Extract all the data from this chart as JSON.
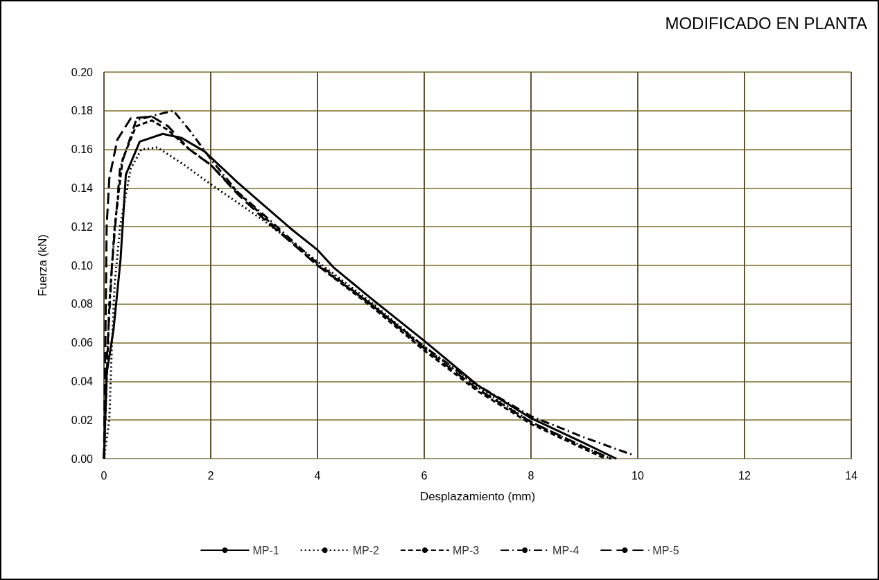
{
  "chart_data": {
    "type": "line",
    "title": "MODIFICADO EN PLANTA",
    "xlabel": "Desplazamiento (mm)",
    "ylabel": "Fuerza (kN)",
    "xlim": [
      0,
      14
    ],
    "xticks": [
      0,
      2,
      4,
      6,
      8,
      10,
      12,
      14
    ],
    "ylim": [
      0,
      0.2
    ],
    "yticks": [
      {
        "value": 0,
        "label": "0.00"
      },
      {
        "value": 0.02,
        "label": "0.02"
      },
      {
        "value": 0.04,
        "label": "0.04"
      },
      {
        "value": 0.06,
        "label": "0.06"
      },
      {
        "value": 0.08,
        "label": "0.08"
      },
      {
        "value": 0.1,
        "label": "0.10"
      },
      {
        "value": 0.12,
        "label": "0.12"
      },
      {
        "value": 0.14,
        "label": "0.14"
      },
      {
        "value": 0.16,
        "label": "0.16"
      },
      {
        "value": 0.18,
        "label": "0.18"
      },
      {
        "value": 0.2,
        "label": "0.20"
      }
    ],
    "grid": true,
    "legend": "bottom",
    "marker": "none",
    "series": [
      {
        "name": "MP-1",
        "color": "#000000",
        "line_style": "solid",
        "x": [
          0,
          0.05,
          0.18,
          0.31,
          0.41,
          0.67,
          1.1,
          1.45,
          1.88,
          2.5,
          3,
          3.5,
          4,
          4.3,
          5,
          6,
          7,
          8,
          9,
          9.6
        ],
        "values": [
          0,
          0.044,
          0.067,
          0.103,
          0.147,
          0.164,
          0.168,
          0.166,
          0.159,
          0.143,
          0.131,
          0.119,
          0.108,
          0.099,
          0.083,
          0.061,
          0.038,
          0.021,
          0.008,
          0
        ]
      },
      {
        "name": "MP-2",
        "color": "#000000",
        "line_style": "dotted",
        "x": [
          0,
          0.1,
          0.15,
          0.2,
          0.3,
          0.5,
          0.7,
          1,
          1.5,
          2,
          3,
          4,
          5,
          6,
          7,
          8,
          9,
          9.5
        ],
        "values": [
          0,
          0.02,
          0.06,
          0.09,
          0.12,
          0.15,
          0.16,
          0.161,
          0.152,
          0.142,
          0.123,
          0.102,
          0.081,
          0.058,
          0.037,
          0.019,
          0.006,
          0
        ]
      },
      {
        "name": "MP-3",
        "color": "#000000",
        "line_style": "dashed",
        "x": [
          0,
          0.05,
          0.1,
          0.2,
          0.35,
          0.6,
          0.9,
          1.2,
          1.6,
          2,
          2.5,
          3,
          4,
          5,
          6,
          7,
          8,
          9,
          9.4
        ],
        "values": [
          0,
          0.04,
          0.08,
          0.12,
          0.155,
          0.172,
          0.175,
          0.17,
          0.16,
          0.152,
          0.138,
          0.125,
          0.1,
          0.079,
          0.056,
          0.035,
          0.018,
          0.005,
          0
        ]
      },
      {
        "name": "MP-4",
        "color": "#000000",
        "line_style": "dashdot",
        "x": [
          0,
          0.05,
          0.15,
          0.3,
          0.6,
          1,
          1.3,
          1.6,
          2,
          2.5,
          3,
          4,
          5,
          6,
          7,
          8,
          9,
          9.9
        ],
        "values": [
          0,
          0.05,
          0.1,
          0.15,
          0.175,
          0.178,
          0.18,
          0.17,
          0.155,
          0.138,
          0.126,
          0.101,
          0.08,
          0.058,
          0.038,
          0.022,
          0.011,
          0.002
        ]
      },
      {
        "name": "MP-5",
        "color": "#000000",
        "line_style": "longdash",
        "x": [
          0,
          0.03,
          0.05,
          0.1,
          0.25,
          0.5,
          0.9,
          1.2,
          1.6,
          2,
          2.5,
          3,
          4,
          5,
          6,
          7,
          8,
          9,
          9.5
        ],
        "values": [
          0,
          0.07,
          0.12,
          0.145,
          0.165,
          0.176,
          0.177,
          0.172,
          0.16,
          0.152,
          0.137,
          0.124,
          0.1,
          0.08,
          0.057,
          0.036,
          0.019,
          0.006,
          0
        ]
      }
    ]
  }
}
